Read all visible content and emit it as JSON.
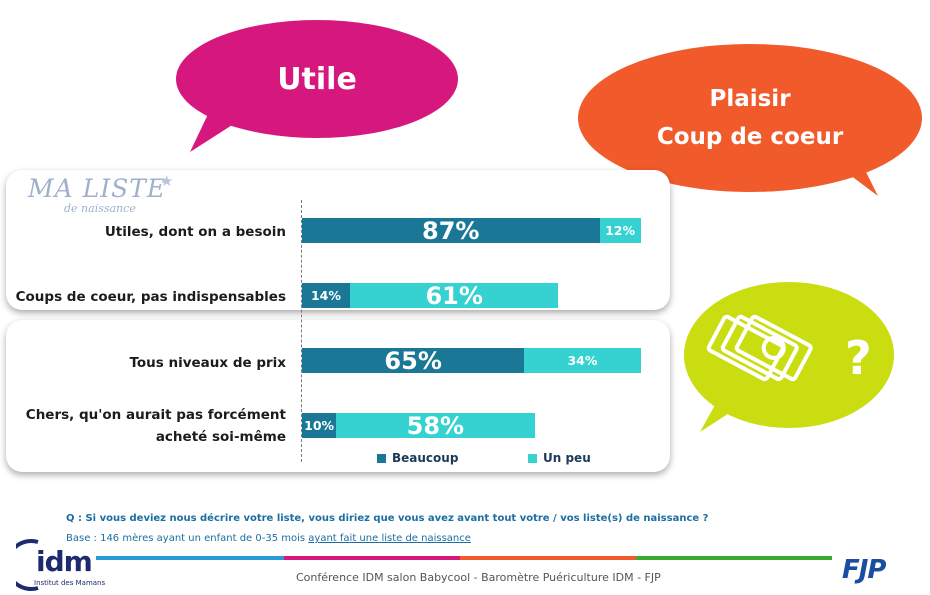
{
  "bubbles": {
    "utile": "Utile",
    "plaisir_line1": "Plaisir",
    "plaisir_line2": "Coup de coeur",
    "question_mark": "?"
  },
  "logo_liste": {
    "main": "MA LISTE",
    "sub": "de naissance"
  },
  "chart_data": {
    "type": "bar",
    "orientation": "horizontal",
    "stacked": true,
    "categories": [
      "Utiles, dont on a  besoin",
      "Coups de coeur, pas indispensables",
      "Tous niveaux de prix",
      "Chers, qu'on aurait pas forcément acheté soi-même"
    ],
    "series": [
      {
        "name": "Beaucoup",
        "color": "#1a7896",
        "values": [
          87,
          14,
          65,
          10
        ]
      },
      {
        "name": "Un peu",
        "color": "#36d1d1",
        "values": [
          12,
          61,
          34,
          58
        ]
      }
    ],
    "data_labels": [
      [
        "87%",
        "14%",
        "65%",
        "10%"
      ],
      [
        "12%",
        "61%",
        "34%",
        "58%"
      ]
    ],
    "xlim": [
      0,
      100
    ],
    "legend": "bottom"
  },
  "labels": {
    "cat0": "Utiles, dont on a  besoin",
    "cat1": "Coups de coeur, pas indispensables",
    "cat2": "Tous niveaux de prix",
    "cat3_line1": "Chers, qu'on aurait pas forcément",
    "cat3_line2": "acheté soi-même"
  },
  "legend": {
    "beaucoup": "Beaucoup",
    "un_peu": "Un peu"
  },
  "question": "Q : Si vous deviez nous décrire votre liste, vous diriez que vous avez avant tout votre / vos liste(s) de naissance ?",
  "base_prefix": "Base : 146 mères ayant un enfant de 0-35 mois ",
  "base_underlined": "ayant fait une liste de naissance",
  "footer": "Conférence IDM salon Babycool - Baromètre Puériculture IDM - FJP",
  "logos": {
    "idm": "idm",
    "idm_sub": "Institut des Mamans",
    "fjp": "FJP"
  },
  "colors": {
    "beaucoup": "#1a7896",
    "un_peu": "#36d1d1",
    "utile_bubble": "#d6187e",
    "plaisir_bubble": "#f15a2a",
    "price_bubble": "#c9dd10"
  }
}
